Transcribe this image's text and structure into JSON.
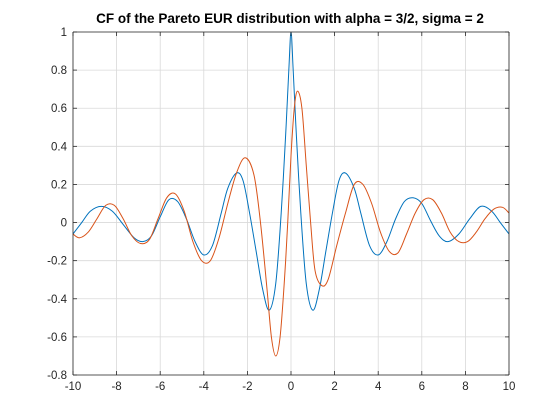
{
  "chart_data": {
    "type": "line",
    "title": "CF of the Pareto EUR distribution with alpha = 3/2, sigma = 2",
    "xlabel": "",
    "ylabel": "",
    "xlim": [
      -10,
      10
    ],
    "ylim": [
      -0.8,
      1
    ],
    "xticks": [
      -10,
      -8,
      -6,
      -4,
      -2,
      0,
      2,
      4,
      6,
      8,
      10
    ],
    "yticks": [
      -0.8,
      -0.6,
      -0.4,
      -0.2,
      0,
      0.2,
      0.4,
      0.6,
      0.8,
      1
    ],
    "xtick_labels": [
      "-10",
      "-8",
      "-6",
      "-4",
      "-2",
      "0",
      "2",
      "4",
      "6",
      "8",
      "10"
    ],
    "ytick_labels": [
      "-0.8",
      "-0.6",
      "-0.4",
      "-0.2",
      "0",
      "0.2",
      "0.4",
      "0.6",
      "0.8",
      "1"
    ],
    "grid": true,
    "series": [
      {
        "color": "#0072BD",
        "x": [
          -10,
          -9.6,
          -9.2,
          -8.7,
          -8.2,
          -7.7,
          -7.2,
          -6.8,
          -6.4,
          -6.0,
          -5.6,
          -5.2,
          -4.8,
          -4.4,
          -4.0,
          -3.6,
          -3.2,
          -2.9,
          -2.5,
          -2.2,
          -1.9,
          -1.6,
          -1.3,
          -1.0,
          -0.7,
          -0.45,
          -0.25,
          -0.1,
          0,
          0.1,
          0.25,
          0.45,
          0.7,
          1.0,
          1.3,
          1.6,
          1.9,
          2.2,
          2.5,
          2.9,
          3.2,
          3.6,
          4.0,
          4.4,
          4.8,
          5.2,
          5.6,
          6.0,
          6.4,
          6.8,
          7.2,
          7.7,
          8.2,
          8.7,
          9.2,
          9.6,
          10
        ],
        "y": [
          -0.06,
          0.0,
          0.06,
          0.085,
          0.06,
          -0.01,
          -0.08,
          -0.1,
          -0.07,
          0.03,
          0.12,
          0.11,
          0.02,
          -0.1,
          -0.17,
          -0.12,
          0.05,
          0.18,
          0.26,
          0.22,
          0.05,
          -0.15,
          -0.35,
          -0.46,
          -0.32,
          0.05,
          0.45,
          0.8,
          1.0,
          0.8,
          0.45,
          0.05,
          -0.32,
          -0.46,
          -0.35,
          -0.15,
          0.05,
          0.22,
          0.26,
          0.18,
          0.05,
          -0.12,
          -0.17,
          -0.1,
          0.02,
          0.11,
          0.13,
          0.1,
          0.01,
          -0.07,
          -0.1,
          -0.06,
          0.02,
          0.085,
          0.06,
          0.0,
          -0.06
        ]
      },
      {
        "color": "#D95319",
        "x": [
          -10,
          -9.7,
          -9.3,
          -8.9,
          -8.5,
          -8.1,
          -7.7,
          -7.3,
          -6.9,
          -6.5,
          -6.1,
          -5.7,
          -5.3,
          -4.9,
          -4.5,
          -4.1,
          -3.7,
          -3.3,
          -2.9,
          -2.5,
          -2.1,
          -1.7,
          -1.4,
          -1.1,
          -0.9,
          -0.7,
          -0.5,
          -0.3,
          -0.15,
          0,
          0.15,
          0.3,
          0.5,
          0.7,
          0.9,
          1.1,
          1.4,
          1.7,
          2.1,
          2.5,
          2.9,
          3.3,
          3.7,
          4.1,
          4.5,
          4.9,
          5.3,
          5.7,
          6.1,
          6.5,
          6.9,
          7.3,
          7.7,
          8.1,
          8.5,
          8.9,
          9.3,
          9.7,
          10
        ],
        "y": [
          -0.06,
          -0.08,
          -0.05,
          0.02,
          0.09,
          0.09,
          0.02,
          -0.07,
          -0.11,
          -0.09,
          0.02,
          0.13,
          0.15,
          0.06,
          -0.1,
          -0.2,
          -0.2,
          -0.08,
          0.1,
          0.26,
          0.34,
          0.25,
          0.0,
          -0.35,
          -0.6,
          -0.7,
          -0.6,
          -0.3,
          0.0,
          0.35,
          0.6,
          0.69,
          0.6,
          0.3,
          0.0,
          -0.25,
          -0.33,
          -0.3,
          -0.12,
          0.05,
          0.2,
          0.2,
          0.1,
          -0.05,
          -0.15,
          -0.16,
          -0.06,
          0.05,
          0.12,
          0.12,
          0.05,
          -0.05,
          -0.1,
          -0.1,
          -0.05,
          0.02,
          0.07,
          0.08,
          0.05
        ]
      }
    ]
  },
  "colors": {
    "axis": "#262626",
    "grid": "#d9d9d9",
    "background": "#ffffff"
  }
}
